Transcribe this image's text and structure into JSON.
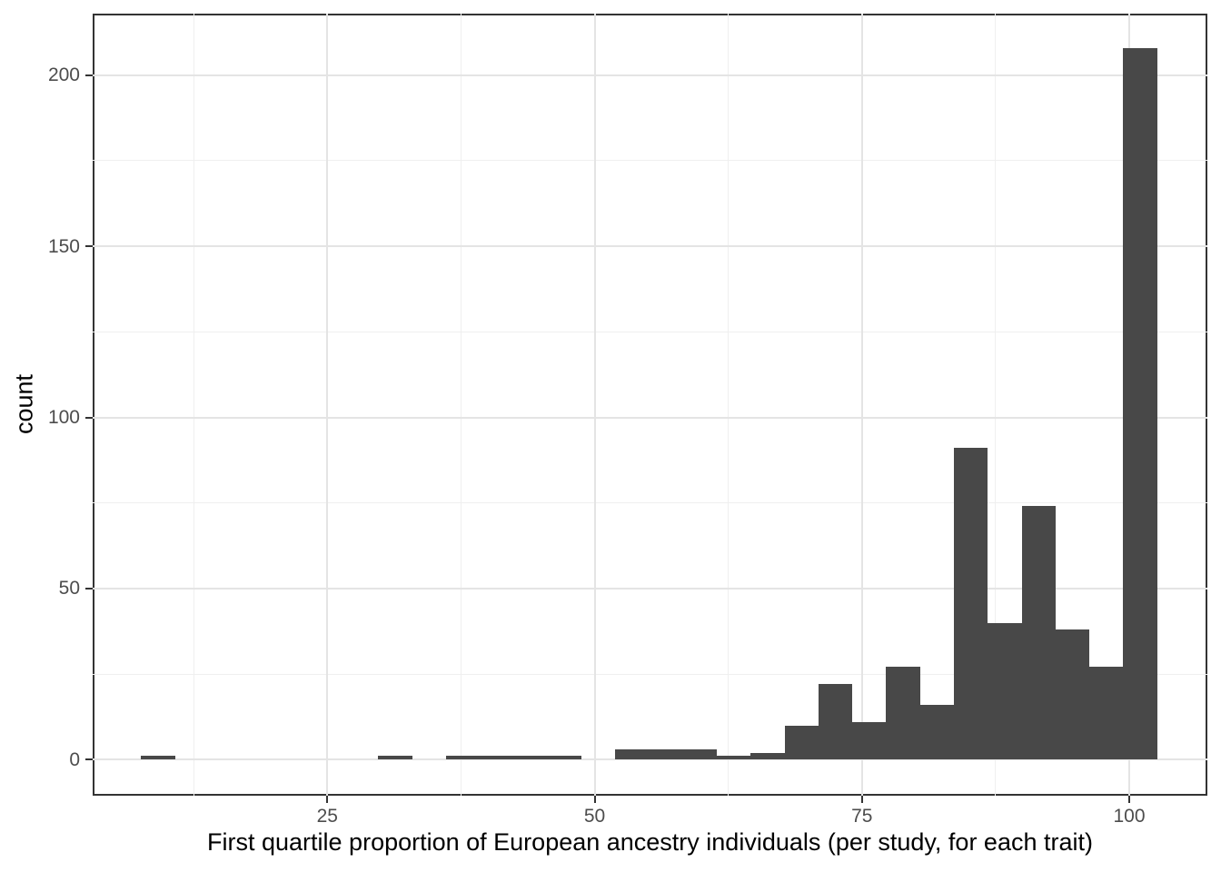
{
  "chart_data": {
    "type": "bar",
    "subtype": "histogram",
    "title": "",
    "xlabel": "First quartile proportion of European ancestry individuals (per study, for each trait)",
    "ylabel": "count",
    "x_ticks": [
      25,
      50,
      75,
      100
    ],
    "x_tick_labels": [
      "25",
      "50",
      "75",
      "100"
    ],
    "x_minor_ticks": [
      12.5,
      37.5,
      62.5,
      87.5
    ],
    "y_ticks": [
      0,
      50,
      100,
      150,
      200
    ],
    "y_tick_labels": [
      "0",
      "50",
      "100",
      "150",
      "200"
    ],
    "y_minor_ticks": [
      25,
      75,
      125,
      175
    ],
    "x_range": [
      3.1,
      107.3
    ],
    "y_range": [
      -10.6,
      218
    ],
    "bin_width": 3.167,
    "bins": [
      {
        "x0": 7.59,
        "x1": 10.76,
        "count": 1
      },
      {
        "x0": 29.76,
        "x1": 32.93,
        "count": 1
      },
      {
        "x0": 36.09,
        "x1": 39.26,
        "count": 1
      },
      {
        "x0": 39.26,
        "x1": 42.43,
        "count": 1
      },
      {
        "x0": 42.43,
        "x1": 45.59,
        "count": 1
      },
      {
        "x0": 45.59,
        "x1": 48.76,
        "count": 1
      },
      {
        "x0": 51.93,
        "x1": 55.1,
        "count": 3
      },
      {
        "x0": 55.1,
        "x1": 58.26,
        "count": 3
      },
      {
        "x0": 58.26,
        "x1": 61.43,
        "count": 3
      },
      {
        "x0": 61.43,
        "x1": 64.6,
        "count": 1
      },
      {
        "x0": 64.6,
        "x1": 67.77,
        "count": 2
      },
      {
        "x0": 67.77,
        "x1": 70.93,
        "count": 10
      },
      {
        "x0": 70.93,
        "x1": 74.1,
        "count": 22
      },
      {
        "x0": 74.1,
        "x1": 77.27,
        "count": 11
      },
      {
        "x0": 77.27,
        "x1": 80.44,
        "count": 27
      },
      {
        "x0": 80.44,
        "x1": 83.6,
        "count": 16
      },
      {
        "x0": 83.6,
        "x1": 86.77,
        "count": 91
      },
      {
        "x0": 86.77,
        "x1": 89.94,
        "count": 40
      },
      {
        "x0": 89.94,
        "x1": 93.11,
        "count": 74
      },
      {
        "x0": 93.11,
        "x1": 96.27,
        "count": 38
      },
      {
        "x0": 96.27,
        "x1": 99.44,
        "count": 27
      },
      {
        "x0": 99.44,
        "x1": 102.61,
        "count": 208
      }
    ],
    "colors": {
      "bar_fill": "#484848",
      "panel_border": "#333333",
      "grid_major": "#e4e4e4",
      "grid_minor": "#efefef",
      "tick_label": "#4d4d4d",
      "axis_title": "#000000",
      "background": "#ffffff"
    },
    "grid": true,
    "legend": false
  }
}
